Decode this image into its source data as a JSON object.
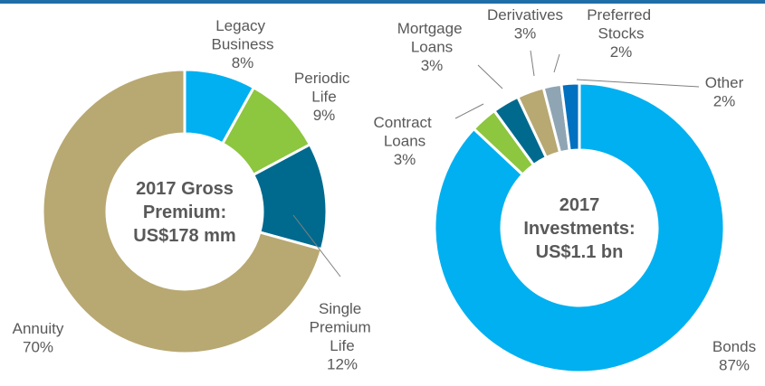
{
  "chart_data": [
    {
      "type": "pie",
      "center_text": [
        "2017 Gross",
        "Premium:",
        "US$178 mm"
      ],
      "categories": [
        "Legacy Business",
        "Periodic Life",
        "Single Premium Life",
        "Annuity"
      ],
      "values": [
        8,
        9,
        12,
        70
      ],
      "value_labels": [
        "8%",
        "9%",
        "12%",
        "70%"
      ],
      "colors": [
        "#00b0f0",
        "#8dc63f",
        "#006a8e",
        "#b8a872"
      ]
    },
    {
      "type": "pie",
      "center_text": [
        "2017",
        "Investments:",
        "US$1.1 bn"
      ],
      "categories": [
        "Bonds",
        "Contract Loans",
        "Mortgage Loans",
        "Derivatives",
        "Preferred Stocks",
        "Other"
      ],
      "values": [
        87,
        3,
        3,
        3,
        2,
        2
      ],
      "value_labels": [
        "87%",
        "3%",
        "3%",
        "3%",
        "2%",
        "2%"
      ],
      "colors": [
        "#00b0f0",
        "#8dc63f",
        "#006a8e",
        "#b8a872",
        "#8fa5b4",
        "#0070c0"
      ]
    }
  ]
}
